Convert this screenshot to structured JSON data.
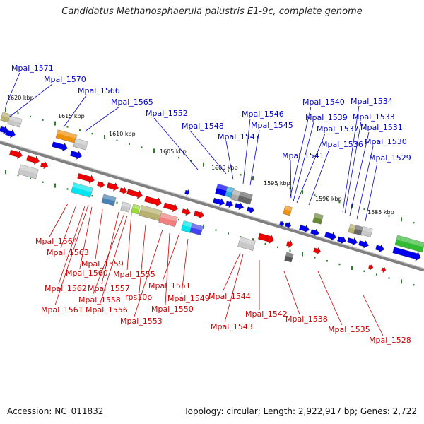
{
  "title": "Candidatus Methanosphaerula palustris E1-9c, complete genome",
  "footer": {
    "accession": "Accession: NC_011832",
    "summary": "Topology: circular; Length: 2,922,917 bp; Genes: 2,722"
  },
  "colors": {
    "top_strand_label": "#0000cc",
    "bottom_strand_label": "#cc0000",
    "backbone": "#808080",
    "tick": "#2e7d2e"
  },
  "scale_labels": [
    "1620 kbp",
    "1615 kbp",
    "1610 kbp",
    "1605 kbp",
    "1600 kbp",
    "1595 kbp",
    "1590 kbp",
    "1585 kbp"
  ],
  "top_labels": [
    "Mpal_1571",
    "Mpal_1570",
    "Mpal_1566",
    "Mpal_1565",
    "Mpal_1552",
    "Mpal_1548",
    "Mpal_1547",
    "Mpal_1546",
    "Mpal_1545",
    "Mpal_1541",
    "Mpal_1540",
    "Mpal_1539",
    "Mpal_1537",
    "Mpal_1536",
    "Mpal_1534",
    "Mpal_1533",
    "Mpal_1531",
    "Mpal_1530",
    "Mpal_1529"
  ],
  "bottom_labels": [
    "Mpal_1564",
    "Mpal_1563",
    "Mpal_1559",
    "Mpal_1560",
    "Mpal_1562",
    "Mpal_1557",
    "Mpal_1555",
    "Mpal_1558",
    "Mpal_1561",
    "Mpal_1556",
    "rps10p",
    "Mpal_1551",
    "Mpal_1549",
    "Mpal_1550",
    "Mpal_1553",
    "Mpal_1544",
    "Mpal_1543",
    "Mpal_1542",
    "Mpal_1538",
    "Mpal_1535",
    "Mpal_1528"
  ]
}
